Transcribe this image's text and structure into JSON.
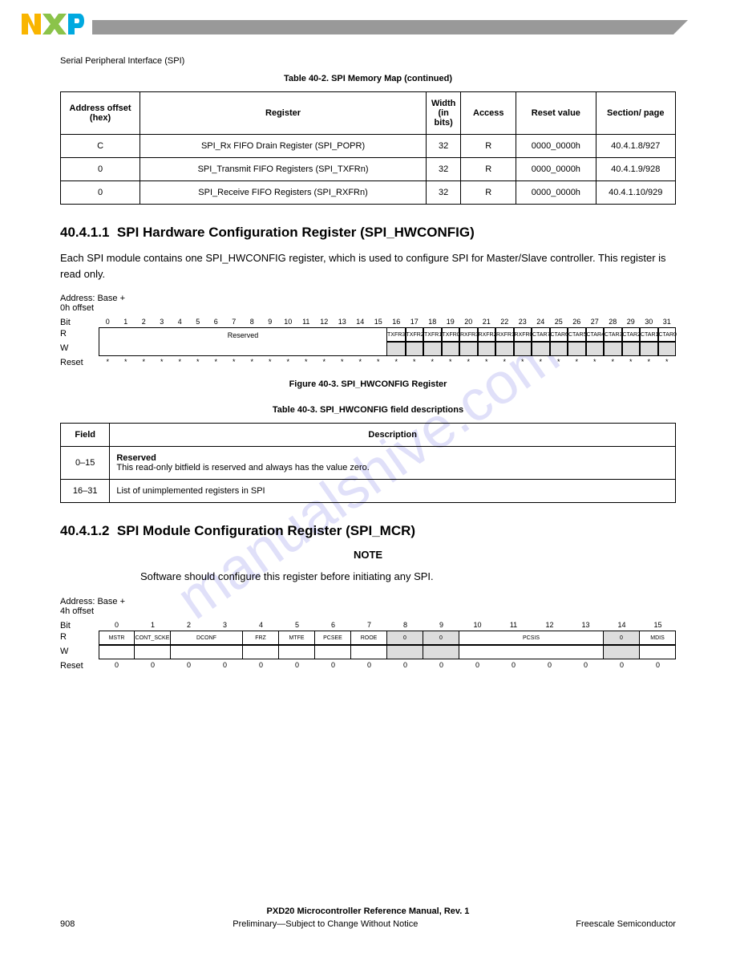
{
  "header": {
    "section_title": "Serial Peripheral Interface (SPI)"
  },
  "table1": {
    "caption": "Table 40-2. SPI Memory Map (continued)",
    "columns": [
      "Address offset (hex)",
      "Register",
      "Width (in bits)",
      "Access",
      "Reset value",
      "Section/ page"
    ],
    "rows": [
      {
        "addr": "C",
        "reg": "SPI_Rx FIFO Drain Register (SPI_POPR)",
        "w": "32",
        "acc": "R",
        "reset": "0000_0000h",
        "sect": "40.4.1.8/927"
      },
      {
        "addr": "0",
        "reg": "SPI_Transmit FIFO Registers (SPI_TXFRn)",
        "w": "32",
        "acc": "R",
        "reset": "0000_0000h",
        "sect": "40.4.1.9/928"
      },
      {
        "addr": "0",
        "reg": "SPI_Receive FIFO Registers (SPI_RXFRn)",
        "w": "32",
        "acc": "R",
        "reset": "0000_0000h",
        "sect": "40.4.1.10/929"
      }
    ]
  },
  "section1": {
    "number": "40.4.1.1",
    "title": "SPI Hardware Configuration Register (SPI_HWCONFIG)",
    "para": "Each SPI module contains one SPI_HWCONFIG register, which is used to configure SPI for Master/Slave controller. This register is read only.",
    "addr_label": "Address: Base + 0h offset",
    "bit_label": "Bit",
    "r_label": "R",
    "w_label": "W",
    "reset_label": "Reset",
    "reserved": "Reserved",
    "txfr_bits": [
      "TXFR3",
      "TXFR2",
      "TXFR1",
      "TXFR0",
      "RXFR3",
      "RXFR2",
      "RXFR1",
      "RXFR0",
      "CTAR7",
      "CTAR6",
      "CTAR5",
      "CTAR4",
      "CTAR3",
      "CTAR2",
      "CTAR1",
      "CTAR0"
    ],
    "fig_caption": "Figure 40-3. SPI_HWCONFIG Register",
    "desc_caption": "Table 40-3. SPI_HWCONFIG field descriptions",
    "desc_cols": [
      "Field",
      "Description"
    ],
    "desc_rows": [
      {
        "field": "0–15",
        "desc_label": "Reserved",
        "desc": "This read-only bitfield is reserved and always has the value zero."
      },
      {
        "field": "16–31",
        "desc": "List of unimplemented registers in SPI"
      }
    ]
  },
  "section2": {
    "number": "40.4.1.2",
    "title": "SPI Module Configuration Register (SPI_MCR)",
    "note_label": "NOTE",
    "note": "Software should configure this register before initiating any SPI.",
    "addr_label": "Address: Base + 4h offset",
    "bit_nums_top": [
      "0",
      "1",
      "2",
      "3",
      "4",
      "5",
      "6",
      "7",
      "8",
      "9",
      "10",
      "11",
      "12",
      "13",
      "14",
      "15"
    ],
    "r_bits": [
      "MSTR",
      "CONT_SCKE",
      "DCONF",
      "FRZ",
      "MTFE",
      "PCSEE",
      "ROOE",
      "0",
      "0",
      "PCSIS",
      "0",
      "0",
      "0",
      "0",
      "0",
      "MDIS"
    ],
    "pcsis_label": "PCSIS",
    "mdis_label": "MDIS"
  },
  "footer": {
    "line1": "PXD20 Microcontroller Reference Manual, Rev. 1",
    "page": "908",
    "right": "Preliminary—Subject to Change Without Notice",
    "company": "Freescale Semiconductor"
  },
  "watermark": "manualshive.com"
}
